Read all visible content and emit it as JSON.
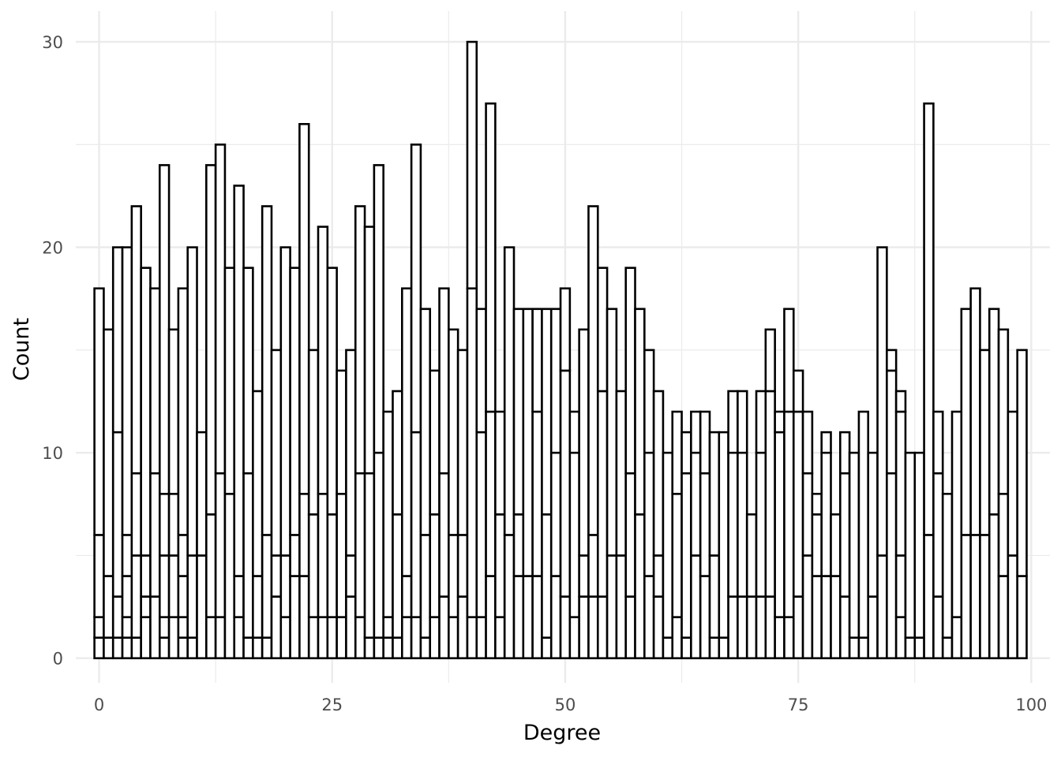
{
  "chart_data": {
    "type": "bar",
    "variant": "stacked-histogram",
    "title": "",
    "xlabel": "Degree",
    "ylabel": "Count",
    "xlim": [
      -2.5,
      102
    ],
    "ylim": [
      -1.2,
      31.5
    ],
    "x_ticks": [
      0,
      25,
      50,
      75,
      100
    ],
    "y_ticks": [
      0,
      10,
      20,
      30
    ],
    "grid": true,
    "bar_fill": "#ffffff",
    "bar_stroke": "#000000",
    "grid_color": "#ebebeb",
    "bins": [
      {
        "x": 0,
        "total": 18,
        "stack": [
          1,
          2,
          6
        ]
      },
      {
        "x": 1,
        "total": 16,
        "stack": [
          1,
          4
        ]
      },
      {
        "x": 2,
        "total": 20,
        "stack": [
          1,
          3,
          11
        ]
      },
      {
        "x": 3,
        "total": 20,
        "stack": [
          1,
          2,
          4,
          6
        ]
      },
      {
        "x": 4,
        "total": 22,
        "stack": [
          1,
          5,
          9
        ]
      },
      {
        "x": 5,
        "total": 19,
        "stack": [
          2,
          3,
          5
        ]
      },
      {
        "x": 6,
        "total": 18,
        "stack": [
          3,
          9
        ]
      },
      {
        "x": 7,
        "total": 24,
        "stack": [
          1,
          2,
          5,
          8
        ]
      },
      {
        "x": 8,
        "total": 16,
        "stack": [
          2,
          5,
          8
        ]
      },
      {
        "x": 9,
        "total": 18,
        "stack": [
          1,
          2,
          4,
          6
        ]
      },
      {
        "x": 10,
        "total": 20,
        "stack": [
          1,
          5
        ]
      },
      {
        "x": 11,
        "total": 11,
        "stack": [
          5
        ]
      },
      {
        "x": 12,
        "total": 24,
        "stack": [
          2,
          7
        ]
      },
      {
        "x": 13,
        "total": 25,
        "stack": [
          2,
          9
        ]
      },
      {
        "x": 14,
        "total": 19,
        "stack": [
          8
        ]
      },
      {
        "x": 15,
        "total": 23,
        "stack": [
          2,
          4
        ]
      },
      {
        "x": 16,
        "total": 19,
        "stack": [
          1,
          9
        ]
      },
      {
        "x": 17,
        "total": 13,
        "stack": [
          1,
          4
        ]
      },
      {
        "x": 18,
        "total": 22,
        "stack": [
          1,
          6
        ]
      },
      {
        "x": 19,
        "total": 15,
        "stack": [
          3,
          5
        ]
      },
      {
        "x": 20,
        "total": 20,
        "stack": [
          2,
          5
        ]
      },
      {
        "x": 21,
        "total": 19,
        "stack": [
          4,
          6
        ]
      },
      {
        "x": 22,
        "total": 26,
        "stack": [
          4,
          8
        ]
      },
      {
        "x": 23,
        "total": 15,
        "stack": [
          2,
          7
        ]
      },
      {
        "x": 24,
        "total": 21,
        "stack": [
          2,
          8
        ]
      },
      {
        "x": 25,
        "total": 19,
        "stack": [
          2,
          7
        ]
      },
      {
        "x": 26,
        "total": 14,
        "stack": [
          2,
          8
        ]
      },
      {
        "x": 27,
        "total": 15,
        "stack": [
          3,
          5
        ]
      },
      {
        "x": 28,
        "total": 22,
        "stack": [
          2,
          9
        ]
      },
      {
        "x": 29,
        "total": 21,
        "stack": [
          1,
          9
        ]
      },
      {
        "x": 30,
        "total": 24,
        "stack": [
          1,
          10
        ]
      },
      {
        "x": 31,
        "total": 12,
        "stack": [
          1,
          2
        ]
      },
      {
        "x": 32,
        "total": 13,
        "stack": [
          1,
          7
        ]
      },
      {
        "x": 33,
        "total": 18,
        "stack": [
          2,
          4
        ]
      },
      {
        "x": 34,
        "total": 25,
        "stack": [
          2,
          11
        ]
      },
      {
        "x": 35,
        "total": 17,
        "stack": [
          1,
          6
        ]
      },
      {
        "x": 36,
        "total": 14,
        "stack": [
          2,
          7
        ]
      },
      {
        "x": 37,
        "total": 18,
        "stack": [
          3,
          9
        ]
      },
      {
        "x": 38,
        "total": 16,
        "stack": [
          2,
          6
        ]
      },
      {
        "x": 39,
        "total": 15,
        "stack": [
          3,
          6
        ]
      },
      {
        "x": 40,
        "total": 30,
        "stack": [
          2,
          18
        ]
      },
      {
        "x": 41,
        "total": 17,
        "stack": [
          2,
          11
        ]
      },
      {
        "x": 42,
        "total": 27,
        "stack": [
          4,
          12
        ]
      },
      {
        "x": 43,
        "total": 12,
        "stack": [
          2,
          7
        ]
      },
      {
        "x": 44,
        "total": 20,
        "stack": [
          6
        ]
      },
      {
        "x": 45,
        "total": 17,
        "stack": [
          4,
          7
        ]
      },
      {
        "x": 46,
        "total": 17,
        "stack": [
          4
        ]
      },
      {
        "x": 47,
        "total": 17,
        "stack": [
          4,
          12
        ]
      },
      {
        "x": 48,
        "total": 17,
        "stack": [
          1,
          7
        ]
      },
      {
        "x": 49,
        "total": 17,
        "stack": [
          4,
          10
        ]
      },
      {
        "x": 50,
        "total": 18,
        "stack": [
          3,
          14
        ]
      },
      {
        "x": 51,
        "total": 12,
        "stack": [
          2,
          10
        ]
      },
      {
        "x": 52,
        "total": 16,
        "stack": [
          3,
          5
        ]
      },
      {
        "x": 53,
        "total": 22,
        "stack": [
          3,
          6
        ]
      },
      {
        "x": 54,
        "total": 19,
        "stack": [
          3,
          13
        ]
      },
      {
        "x": 55,
        "total": 17,
        "stack": [
          5
        ]
      },
      {
        "x": 56,
        "total": 13,
        "stack": [
          5
        ]
      },
      {
        "x": 57,
        "total": 19,
        "stack": [
          3,
          9
        ]
      },
      {
        "x": 58,
        "total": 17,
        "stack": [
          7
        ]
      },
      {
        "x": 59,
        "total": 15,
        "stack": [
          4,
          10
        ]
      },
      {
        "x": 60,
        "total": 13,
        "stack": [
          3,
          5
        ]
      },
      {
        "x": 61,
        "total": 10,
        "stack": [
          1
        ]
      },
      {
        "x": 62,
        "total": 12,
        "stack": [
          2,
          8
        ]
      },
      {
        "x": 63,
        "total": 11,
        "stack": [
          1,
          9
        ]
      },
      {
        "x": 64,
        "total": 12,
        "stack": [
          5,
          10
        ]
      },
      {
        "x": 65,
        "total": 12,
        "stack": [
          4,
          9
        ]
      },
      {
        "x": 66,
        "total": 11,
        "stack": [
          1,
          5
        ]
      },
      {
        "x": 67,
        "total": 11,
        "stack": [
          1
        ]
      },
      {
        "x": 68,
        "total": 13,
        "stack": [
          3,
          10
        ]
      },
      {
        "x": 69,
        "total": 13,
        "stack": [
          3,
          10
        ]
      },
      {
        "x": 70,
        "total": 7,
        "stack": [
          3
        ]
      },
      {
        "x": 71,
        "total": 13,
        "stack": [
          3,
          10
        ]
      },
      {
        "x": 72,
        "total": 16,
        "stack": [
          3,
          13
        ]
      },
      {
        "x": 73,
        "total": 12,
        "stack": [
          2,
          11
        ]
      },
      {
        "x": 74,
        "total": 17,
        "stack": [
          2,
          12
        ]
      },
      {
        "x": 75,
        "total": 14,
        "stack": [
          3,
          12
        ]
      },
      {
        "x": 76,
        "total": 12,
        "stack": [
          5,
          9
        ]
      },
      {
        "x": 77,
        "total": 8,
        "stack": [
          4,
          7
        ]
      },
      {
        "x": 78,
        "total": 11,
        "stack": [
          4,
          10
        ]
      },
      {
        "x": 79,
        "total": 7,
        "stack": [
          4
        ]
      },
      {
        "x": 80,
        "total": 11,
        "stack": [
          3,
          9
        ]
      },
      {
        "x": 81,
        "total": 10,
        "stack": [
          1
        ]
      },
      {
        "x": 82,
        "total": 12,
        "stack": [
          1
        ]
      },
      {
        "x": 83,
        "total": 10,
        "stack": [
          3
        ]
      },
      {
        "x": 84,
        "total": 20,
        "stack": [
          5
        ]
      },
      {
        "x": 85,
        "total": 15,
        "stack": [
          9,
          14
        ]
      },
      {
        "x": 86,
        "total": 13,
        "stack": [
          2,
          5,
          12
        ]
      },
      {
        "x": 87,
        "total": 10,
        "stack": [
          1
        ]
      },
      {
        "x": 88,
        "total": 10,
        "stack": [
          1
        ]
      },
      {
        "x": 89,
        "total": 27,
        "stack": [
          6
        ]
      },
      {
        "x": 90,
        "total": 12,
        "stack": [
          3,
          9
        ]
      },
      {
        "x": 91,
        "total": 8,
        "stack": [
          1
        ]
      },
      {
        "x": 92,
        "total": 12,
        "stack": [
          2
        ]
      },
      {
        "x": 93,
        "total": 17,
        "stack": [
          6
        ]
      },
      {
        "x": 94,
        "total": 18,
        "stack": [
          6
        ]
      },
      {
        "x": 95,
        "total": 15,
        "stack": [
          6
        ]
      },
      {
        "x": 96,
        "total": 17,
        "stack": [
          7
        ]
      },
      {
        "x": 97,
        "total": 16,
        "stack": [
          4,
          8
        ]
      },
      {
        "x": 98,
        "total": 12,
        "stack": [
          5
        ]
      },
      {
        "x": 99,
        "total": 15,
        "stack": [
          4
        ]
      }
    ]
  }
}
